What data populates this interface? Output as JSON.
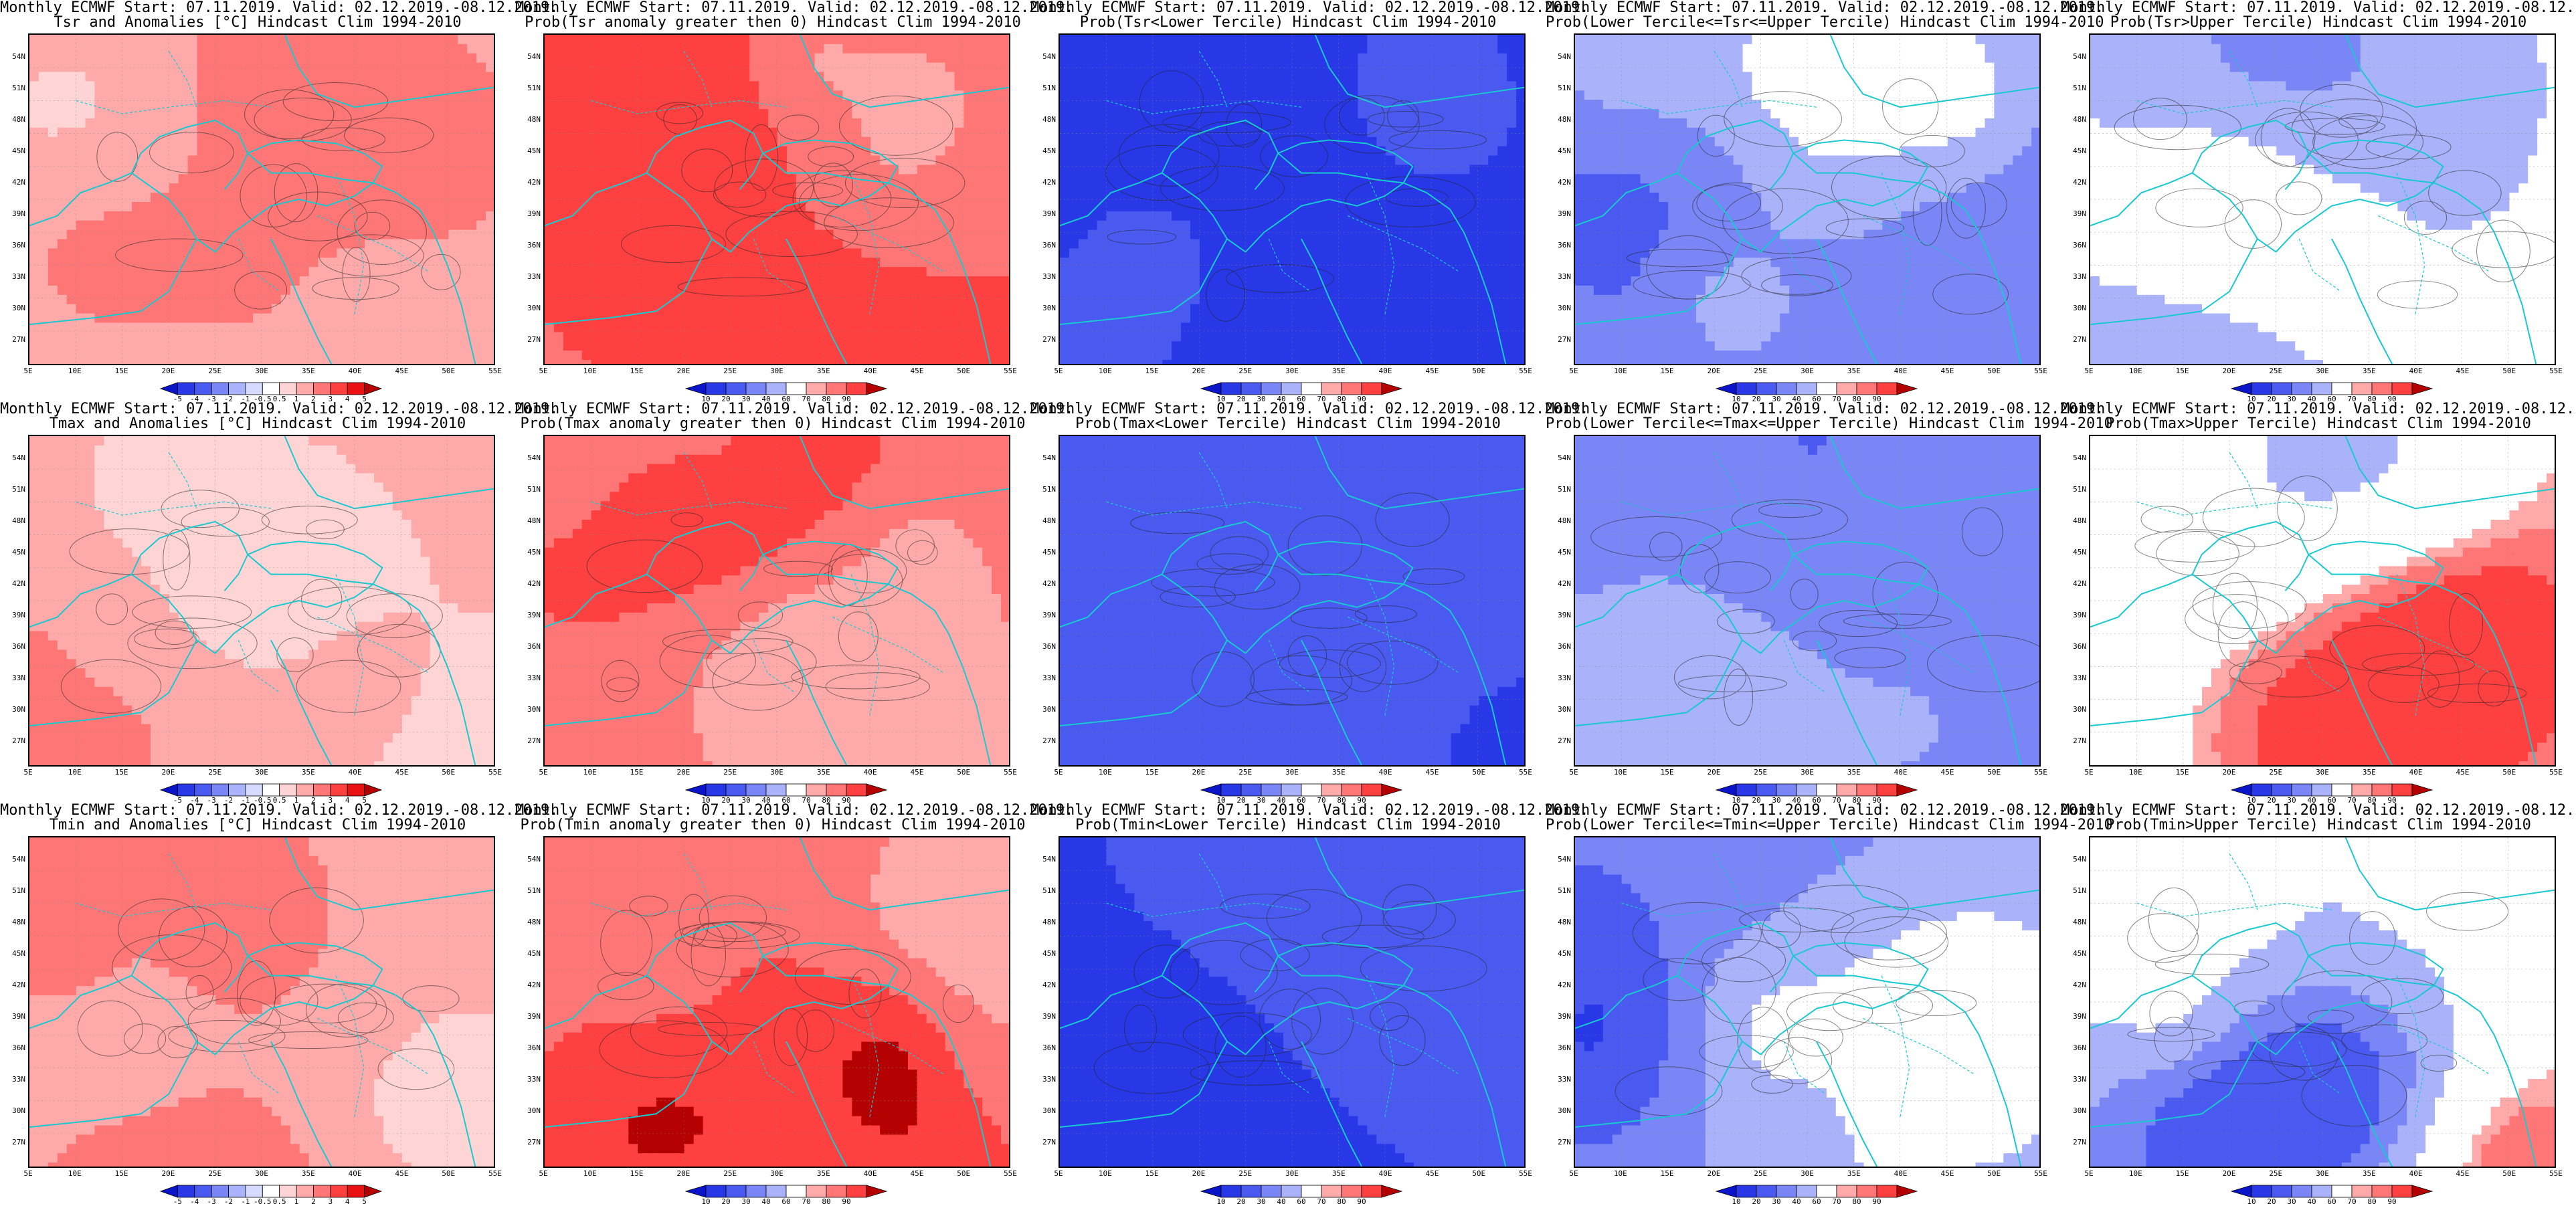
{
  "shared": {
    "line1": "Monthly ECMWF Start: 07.11.2019. Valid: 02.12.2019.-08.12.2019.",
    "lat_ticks": [
      "54N",
      "51N",
      "48N",
      "45N",
      "42N",
      "39N",
      "36N",
      "33N",
      "30N",
      "27N"
    ],
    "lon_ticks": [
      "5E",
      "10E",
      "15E",
      "20E",
      "25E",
      "30E",
      "35E",
      "40E",
      "45E",
      "50E",
      "55E"
    ],
    "anom_levels": [
      "-5",
      "-4",
      "-3",
      "-2",
      "-1",
      "-0.5",
      "0.5",
      "1",
      "2",
      "3",
      "4",
      "5"
    ],
    "prob_levels": [
      "10",
      "20",
      "30",
      "40",
      "60",
      "70",
      "80",
      "90"
    ],
    "anom_colors": [
      "#0a14c8",
      "#2838e6",
      "#4a5af0",
      "#7a86f6",
      "#aab2fa",
      "#d6daff",
      "#ffffff",
      "#ffd4d4",
      "#ffaaaa",
      "#ff7676",
      "#ff4040",
      "#e81010",
      "#b40000"
    ],
    "prob_colors": [
      "#0a14c8",
      "#2838e6",
      "#4a5af0",
      "#7a86f6",
      "#aab2fa",
      "#ffffff",
      "#ffaaaa",
      "#ff7676",
      "#ff4040",
      "#b40000"
    ]
  },
  "panels": [
    {
      "name": "tsr-anomalies",
      "line2": "Tsr and Anomalies [°C] Hindcast Clim 1994-2010",
      "bar": "anom",
      "scheme": "anom",
      "intensity": 0.55
    },
    {
      "name": "prob-tsr-anomaly-positive",
      "line2": "Prob(Tsr anomaly greater then 0) Hindcast Clim 1994-2010",
      "bar": "prob",
      "scheme": "reddish",
      "intensity": 0.75
    },
    {
      "name": "prob-tsr-lower-tercile",
      "line2": "Prob(Tsr<Lower Tercile) Hindcast Clim 1994-2010",
      "bar": "prob",
      "scheme": "deepblue",
      "intensity": 0.9
    },
    {
      "name": "prob-tsr-middle-tercile",
      "line2": "Prob(Lower Tercile<=Tsr<=Upper Tercile) Hindcast Clim 1994-2010",
      "bar": "prob",
      "scheme": "lightblue",
      "intensity": 0.55
    },
    {
      "name": "prob-tsr-upper-tercile",
      "line2": "Prob(Tsr>Upper Tercile) Hindcast Clim 1994-2010",
      "bar": "prob",
      "scheme": "mixed",
      "intensity": 0.45
    },
    {
      "name": "tmax-anomalies",
      "line2": "Tmax and Anomalies [°C] Hindcast Clim 1994-2010",
      "bar": "anom",
      "scheme": "anom",
      "intensity": 0.5
    },
    {
      "name": "prob-tmax-anomaly-positive",
      "line2": "Prob(Tmax anomaly greater then 0) Hindcast Clim 1994-2010",
      "bar": "prob",
      "scheme": "reddish",
      "intensity": 0.7
    },
    {
      "name": "prob-tmax-lower-tercile",
      "line2": "Prob(Tmax<Lower Tercile) Hindcast Clim 1994-2010",
      "bar": "prob",
      "scheme": "deepblue",
      "intensity": 0.85
    },
    {
      "name": "prob-tmax-middle-tercile",
      "line2": "Prob(Lower Tercile<=Tmax<=Upper Tercile) Hindcast Clim 1994-2010",
      "bar": "prob",
      "scheme": "lightblue",
      "intensity": 0.55
    },
    {
      "name": "prob-tmax-upper-tercile",
      "line2": "Prob(Tmax>Upper Tercile) Hindcast Clim 1994-2010",
      "bar": "prob",
      "scheme": "mixed",
      "intensity": 0.45
    },
    {
      "name": "tmin-anomalies",
      "line2": "Tmin and Anomalies [°C] Hindcast Clim 1994-2010",
      "bar": "anom",
      "scheme": "anom",
      "intensity": 0.6
    },
    {
      "name": "prob-tmin-anomaly-positive",
      "line2": "Prob(Tmin anomaly greater then 0) Hindcast Clim 1994-2010",
      "bar": "prob",
      "scheme": "reddish",
      "intensity": 0.78
    },
    {
      "name": "prob-tmin-lower-tercile",
      "line2": "Prob(Tmin<Lower Tercile) Hindcast Clim 1994-2010",
      "bar": "prob",
      "scheme": "deepblue",
      "intensity": 0.9
    },
    {
      "name": "prob-tmin-middle-tercile",
      "line2": "Prob(Lower Tercile<=Tmin<=Upper Tercile) Hindcast Clim 1994-2010",
      "bar": "prob",
      "scheme": "lightblue",
      "intensity": 0.55
    },
    {
      "name": "prob-tmin-upper-tercile",
      "line2": "Prob(Tmin>Upper Tercile) Hindcast Clim 1994-2010",
      "bar": "prob",
      "scheme": "mixed",
      "intensity": 0.45
    }
  ]
}
